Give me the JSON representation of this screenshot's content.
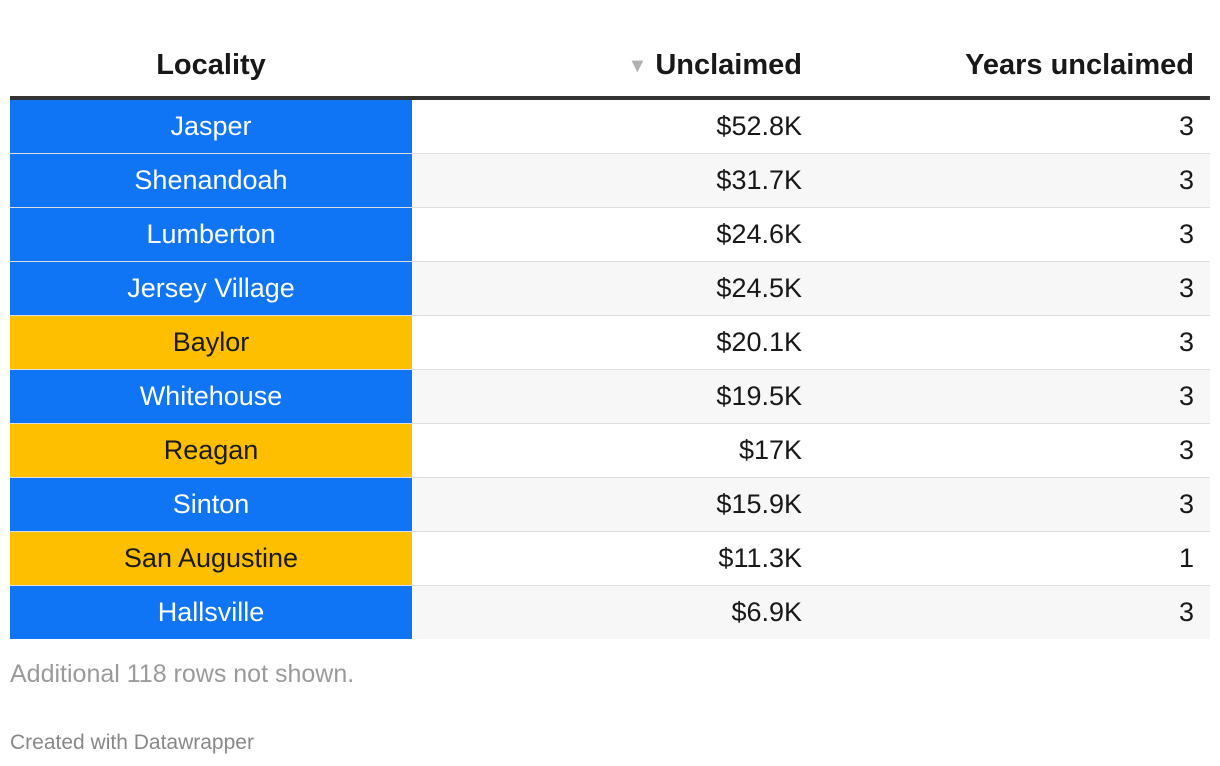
{
  "chart_data": {
    "type": "table",
    "columns": [
      "Locality",
      "Unclaimed",
      "Years unclaimed"
    ],
    "sorted_column": "Unclaimed",
    "sort_direction": "descending",
    "rows": [
      {
        "locality": "Jasper",
        "unclaimed": "$52.8K",
        "years": "3",
        "highlight": "#0f75f5",
        "text_color": "#ffffff"
      },
      {
        "locality": "Shenandoah",
        "unclaimed": "$31.7K",
        "years": "3",
        "highlight": "#0f75f5",
        "text_color": "#ffffff"
      },
      {
        "locality": "Lumberton",
        "unclaimed": "$24.6K",
        "years": "3",
        "highlight": "#0f75f5",
        "text_color": "#ffffff"
      },
      {
        "locality": "Jersey Village",
        "unclaimed": "$24.5K",
        "years": "3",
        "highlight": "#0f75f5",
        "text_color": "#ffffff"
      },
      {
        "locality": "Baylor",
        "unclaimed": "$20.1K",
        "years": "3",
        "highlight": "#fdbf00",
        "text_color": "#1a1a1a"
      },
      {
        "locality": "Whitehouse",
        "unclaimed": "$19.5K",
        "years": "3",
        "highlight": "#0f75f5",
        "text_color": "#ffffff"
      },
      {
        "locality": "Reagan",
        "unclaimed": "$17K",
        "years": "3",
        "highlight": "#fdbf00",
        "text_color": "#1a1a1a"
      },
      {
        "locality": "Sinton",
        "unclaimed": "$15.9K",
        "years": "3",
        "highlight": "#0f75f5",
        "text_color": "#ffffff"
      },
      {
        "locality": "San Augustine",
        "unclaimed": "$11.3K",
        "years": "1",
        "highlight": "#fdbf00",
        "text_color": "#1a1a1a"
      },
      {
        "locality": "Hallsville",
        "unclaimed": "$6.9K",
        "years": "3",
        "highlight": "#0f75f5",
        "text_color": "#ffffff"
      }
    ]
  },
  "header": {
    "locality": "Locality",
    "unclaimed": "Unclaimed",
    "years": "Years unclaimed",
    "sort_icon": "triangle-down-icon"
  },
  "footer": {
    "notes": "Additional 118 rows not shown.",
    "credit": "Created with Datawrapper"
  },
  "colors": {
    "blue": "#0f75f5",
    "yellow": "#fdbf00",
    "stripe": "#f7f7f7",
    "header_rule": "#333333"
  }
}
